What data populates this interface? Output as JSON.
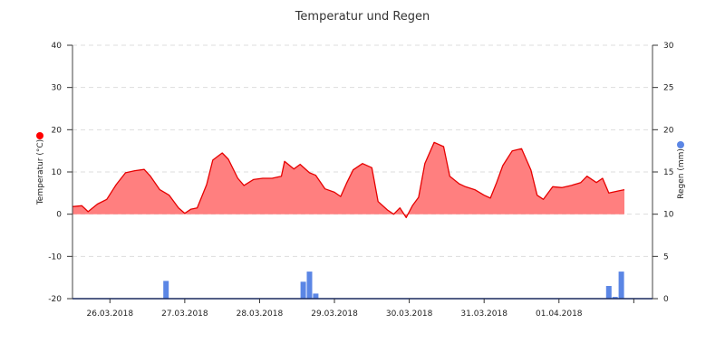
{
  "chart_data": {
    "type": "area",
    "title": "Temperatur und Regen",
    "x_ticks": [
      "26.03.2018",
      "27.03.2018",
      "28.03.2018",
      "29.03.2018",
      "30.03.2018",
      "31.03.2018",
      "01.04.2018"
    ],
    "x_range": [
      "2018-03-25T12:00",
      "2018-04-02T06:00"
    ],
    "y_left": {
      "label": "Temperatur (°C)",
      "range": [
        -20,
        40
      ],
      "ticks": [
        "-20",
        "-10",
        "0",
        "10",
        "20",
        "30",
        "40"
      ],
      "marker_color": "#ff0000"
    },
    "y_right": {
      "label": "Regen (mm)",
      "range": [
        0,
        30
      ],
      "ticks": [
        "0",
        "5",
        "10",
        "15",
        "20",
        "25",
        "30"
      ],
      "marker_color": "#5b86e5"
    },
    "grid": true,
    "series": [
      {
        "type": "area",
        "axis": "left",
        "color": "#e60000",
        "fill": "#ff7f7f",
        "points": [
          [
            "2018-03-25T12:00",
            1.8
          ],
          [
            "2018-03-25T15:00",
            2.0
          ],
          [
            "2018-03-25T17:00",
            0.6
          ],
          [
            "2018-03-25T20:00",
            2.4
          ],
          [
            "2018-03-25T23:00",
            3.5
          ],
          [
            "2018-03-26T02:00",
            7.0
          ],
          [
            "2018-03-26T05:00",
            9.8
          ],
          [
            "2018-03-26T08:00",
            10.3
          ],
          [
            "2018-03-26T11:00",
            10.6
          ],
          [
            "2018-03-26T13:00",
            9.0
          ],
          [
            "2018-03-26T16:00",
            5.8
          ],
          [
            "2018-03-26T19:00",
            4.5
          ],
          [
            "2018-03-26T22:00",
            1.5
          ],
          [
            "2018-03-27T00:00",
            0.2
          ],
          [
            "2018-03-27T02:00",
            1.2
          ],
          [
            "2018-03-27T04:00",
            1.5
          ],
          [
            "2018-03-27T07:00",
            7.0
          ],
          [
            "2018-03-27T09:00",
            12.8
          ],
          [
            "2018-03-27T12:00",
            14.5
          ],
          [
            "2018-03-27T14:00",
            13.0
          ],
          [
            "2018-03-27T17:00",
            8.5
          ],
          [
            "2018-03-27T19:00",
            6.8
          ],
          [
            "2018-03-27T22:00",
            8.2
          ],
          [
            "2018-03-28T01:00",
            8.5
          ],
          [
            "2018-03-28T04:00",
            8.5
          ],
          [
            "2018-03-28T07:00",
            9.0
          ],
          [
            "2018-03-28T08:00",
            12.5
          ],
          [
            "2018-03-28T11:00",
            10.7
          ],
          [
            "2018-03-28T13:00",
            11.8
          ],
          [
            "2018-03-28T16:00",
            9.8
          ],
          [
            "2018-03-28T18:00",
            9.2
          ],
          [
            "2018-03-28T21:00",
            6.0
          ],
          [
            "2018-03-29T00:00",
            5.2
          ],
          [
            "2018-03-29T02:00",
            4.2
          ],
          [
            "2018-03-29T04:00",
            7.5
          ],
          [
            "2018-03-29T06:00",
            10.5
          ],
          [
            "2018-03-29T09:00",
            12.0
          ],
          [
            "2018-03-29T12:00",
            11.0
          ],
          [
            "2018-03-29T14:00",
            3.0
          ],
          [
            "2018-03-29T17:00",
            1.0
          ],
          [
            "2018-03-29T19:00",
            0.0
          ],
          [
            "2018-03-29T21:00",
            1.5
          ],
          [
            "2018-03-29T23:00",
            -0.8
          ],
          [
            "2018-03-30T01:00",
            2.0
          ],
          [
            "2018-03-30T03:00",
            4.0
          ],
          [
            "2018-03-30T05:00",
            12.0
          ],
          [
            "2018-03-30T08:00",
            17.0
          ],
          [
            "2018-03-30T11:00",
            16.0
          ],
          [
            "2018-03-30T13:00",
            9.0
          ],
          [
            "2018-03-30T16:00",
            7.2
          ],
          [
            "2018-03-30T18:00",
            6.5
          ],
          [
            "2018-03-30T21:00",
            5.8
          ],
          [
            "2018-03-31T00:00",
            4.5
          ],
          [
            "2018-03-31T02:00",
            3.8
          ],
          [
            "2018-03-31T04:00",
            7.5
          ],
          [
            "2018-03-31T06:00",
            11.5
          ],
          [
            "2018-03-31T09:00",
            15.0
          ],
          [
            "2018-03-31T12:00",
            15.5
          ],
          [
            "2018-03-31T15:00",
            10.5
          ],
          [
            "2018-03-31T17:00",
            4.5
          ],
          [
            "2018-03-31T19:00",
            3.5
          ],
          [
            "2018-03-31T22:00",
            6.5
          ],
          [
            "2018-04-01T01:00",
            6.3
          ],
          [
            "2018-04-01T04:00",
            6.8
          ],
          [
            "2018-04-01T07:00",
            7.5
          ],
          [
            "2018-04-01T09:00",
            9.0
          ],
          [
            "2018-04-01T12:00",
            7.5
          ],
          [
            "2018-04-01T14:00",
            8.5
          ],
          [
            "2018-04-01T16:00",
            5.0
          ],
          [
            "2018-04-01T19:00",
            5.5
          ],
          [
            "2018-04-01T21:00",
            5.8
          ]
        ]
      },
      {
        "type": "bar",
        "axis": "right",
        "color": "#5b86e5",
        "points": [
          [
            "2018-03-26T18:00",
            2.1
          ],
          [
            "2018-03-28T14:00",
            2.0
          ],
          [
            "2018-03-28T16:00",
            3.2
          ],
          [
            "2018-03-28T18:00",
            0.6
          ],
          [
            "2018-04-01T16:00",
            1.5
          ],
          [
            "2018-04-01T18:00",
            0.2
          ],
          [
            "2018-04-01T20:00",
            3.2
          ]
        ]
      }
    ]
  }
}
